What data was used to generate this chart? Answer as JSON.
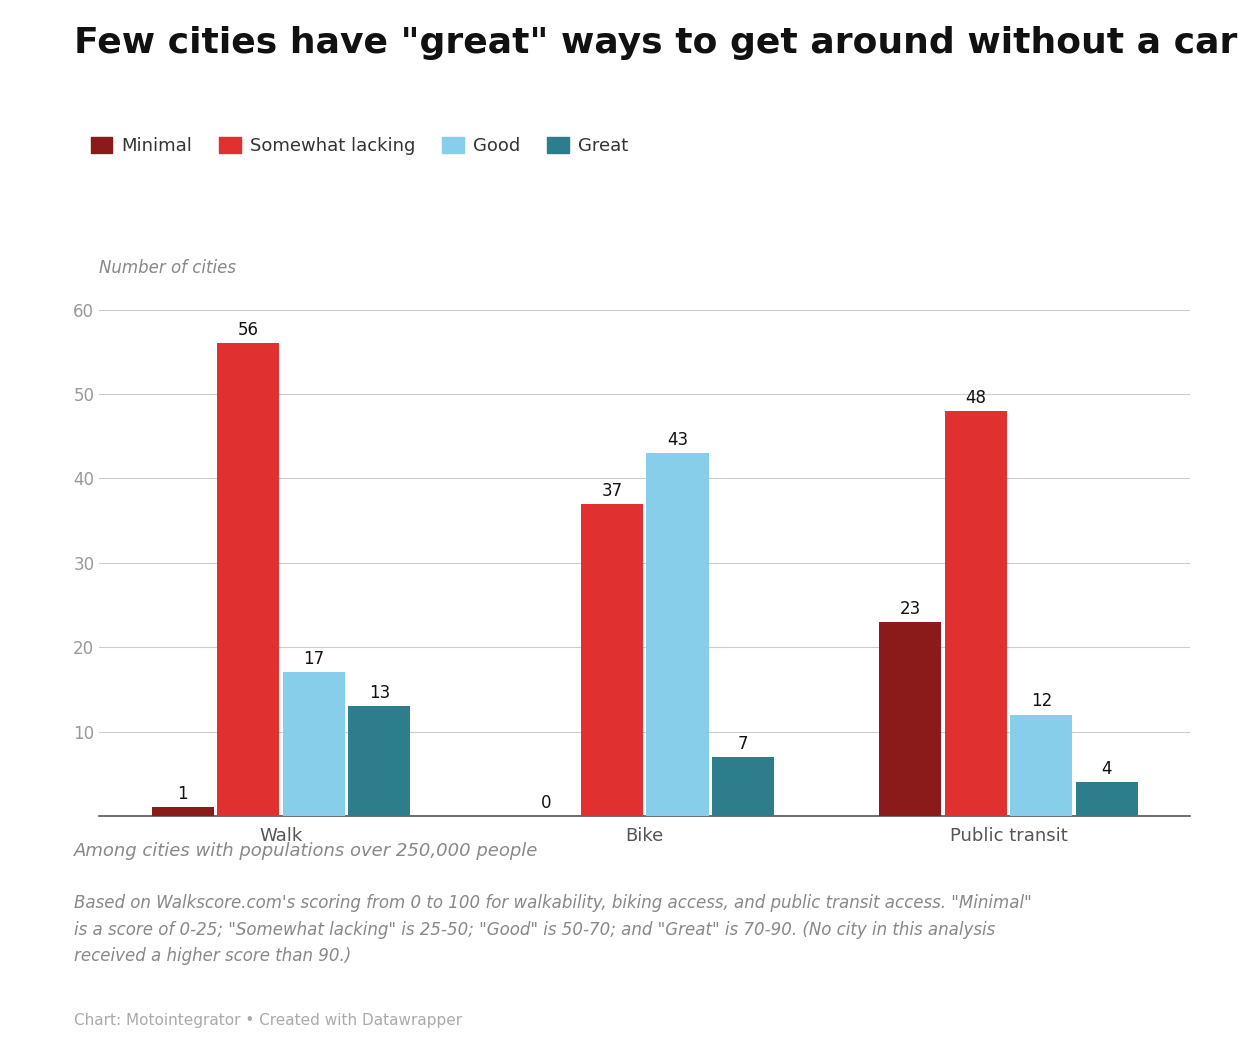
{
  "title": "Few cities have \"great\" ways to get around without a car",
  "ylabel": "Number of cities",
  "categories": [
    "Walk",
    "Bike",
    "Public transit"
  ],
  "legend_labels": [
    "Minimal",
    "Somewhat lacking",
    "Good",
    "Great"
  ],
  "colors": [
    "#8B1A1A",
    "#E03030",
    "#87CEEB",
    "#2E7D8C"
  ],
  "bar_data": {
    "Minimal": [
      1,
      0,
      23
    ],
    "Somewhat lacking": [
      56,
      37,
      48
    ],
    "Good": [
      17,
      43,
      12
    ],
    "Great": [
      13,
      7,
      4
    ]
  },
  "ylim": [
    0,
    62
  ],
  "yticks": [
    10,
    20,
    30,
    40,
    50,
    60
  ],
  "background_color": "#FFFFFF",
  "grid_color": "#CCCCCC",
  "subtitle1": "Among cities with populations over 250,000 people",
  "subtitle2": "Based on Walkscore.com's scoring from 0 to 100 for walkability, biking access, and public transit access. \"Minimal\"\nis a score of 0-25; \"Somewhat lacking\" is 25-50; \"Good\" is 50-70; and \"Great\" is 70-90. (No city in this analysis\nreceived a higher score than 90.)",
  "credit": "Chart: Motointegrator • Created with Datawrapper",
  "title_fontsize": 26,
  "legend_fontsize": 13,
  "axis_label_fontsize": 12,
  "bar_label_fontsize": 12,
  "tick_fontsize": 12,
  "subtitle1_fontsize": 13,
  "subtitle2_fontsize": 12,
  "credit_fontsize": 11
}
